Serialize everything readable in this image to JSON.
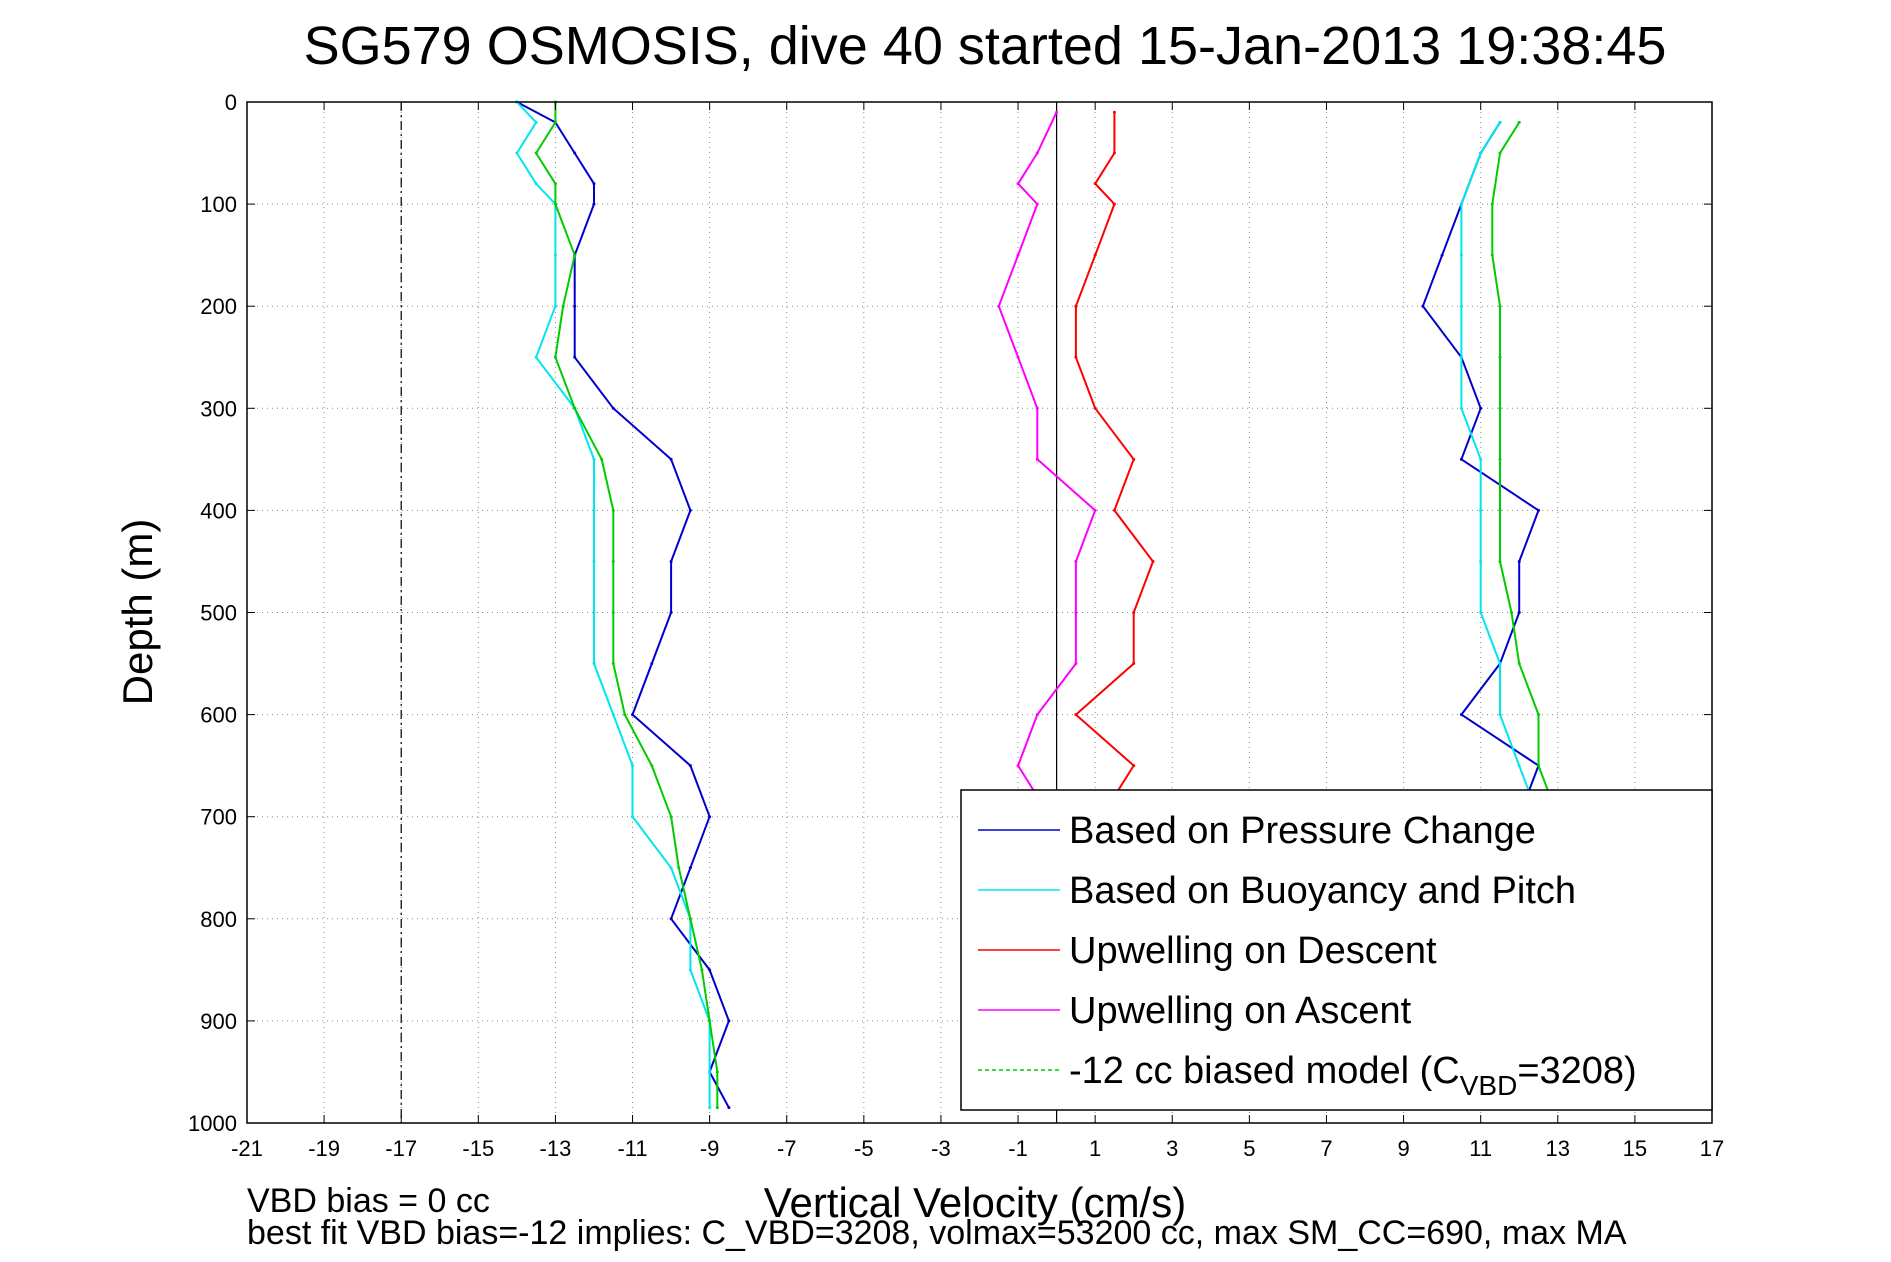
{
  "chart_data": {
    "type": "line",
    "title": "SG579 OSMOSIS, dive 40 started 15-Jan-2013 19:38:45",
    "xlabel": "Vertical Velocity (cm/s)",
    "ylabel": "Depth (m)",
    "xlim": [
      -21,
      17
    ],
    "ylim": [
      1000,
      0
    ],
    "y_reversed": true,
    "grid": true,
    "x_ticks": [
      "-21",
      "-19",
      "-17",
      "-15",
      "-13",
      "-11",
      "-9",
      "-7",
      "-5",
      "-3",
      "-1",
      "1",
      "3",
      "5",
      "7",
      "9",
      "11",
      "13",
      "15",
      "17"
    ],
    "y_ticks": [
      "0",
      "100",
      "200",
      "300",
      "400",
      "500",
      "600",
      "700",
      "800",
      "900",
      "1000"
    ],
    "reference_lines": [
      {
        "x": -17,
        "style": "dash-dot",
        "color": "#000000"
      },
      {
        "x": 0,
        "style": "solid",
        "color": "#000000"
      }
    ],
    "legend_position": "bottom-right",
    "legend": [
      {
        "label": "Based on Pressure Change",
        "color": "#0000cc"
      },
      {
        "label": "Based on Buoyancy and Pitch",
        "color": "#00e5ee"
      },
      {
        "label": "Upwelling on Descent",
        "color": "#ff0000"
      },
      {
        "label": "Upwelling on Ascent",
        "color": "#ff00ff"
      },
      {
        "label_main": "-12 cc biased model (C",
        "label_sub": "VBD",
        "label_end": "=3208)",
        "color": "#00cc00",
        "dashed": true
      }
    ],
    "series": [
      {
        "key": "pressure_descent",
        "color": "#0000cc",
        "depth": [
          0,
          20,
          50,
          80,
          100,
          150,
          200,
          250,
          300,
          350,
          400,
          450,
          500,
          550,
          600,
          650,
          700,
          750,
          800,
          850,
          900,
          950,
          985
        ],
        "velocity": [
          -14,
          -13,
          -12.5,
          -12,
          -12,
          -12.5,
          -12.5,
          -12.5,
          -11.5,
          -10,
          -9.5,
          -10,
          -10,
          -10.5,
          -11,
          -9.5,
          -9,
          -9.5,
          -10,
          -9,
          -8.5,
          -9,
          -8.5
        ]
      },
      {
        "key": "buoyancy_descent",
        "color": "#00e5ee",
        "depth": [
          0,
          20,
          50,
          80,
          100,
          150,
          200,
          250,
          300,
          350,
          400,
          450,
          500,
          550,
          600,
          650,
          700,
          750,
          800,
          850,
          900,
          950,
          985
        ],
        "velocity": [
          -14,
          -13.5,
          -14,
          -13.5,
          -13,
          -13,
          -13,
          -13.5,
          -12.5,
          -12,
          -12,
          -12,
          -12,
          -12,
          -11.5,
          -11,
          -11,
          -10,
          -9.5,
          -9.5,
          -9,
          -9,
          -9
        ]
      },
      {
        "key": "model_descent",
        "color": "#00cc00",
        "depth": [
          0,
          20,
          50,
          80,
          100,
          150,
          200,
          250,
          300,
          350,
          400,
          450,
          500,
          550,
          600,
          650,
          700,
          750,
          800,
          850,
          900,
          950,
          985
        ],
        "velocity": [
          -13,
          -13,
          -13.5,
          -13,
          -13,
          -12.5,
          -12.8,
          -13,
          -12.5,
          -11.8,
          -11.5,
          -11.5,
          -11.5,
          -11.5,
          -11.2,
          -10.5,
          -10,
          -9.8,
          -9.5,
          -9.2,
          -9,
          -8.8,
          -8.8
        ]
      },
      {
        "key": "pressure_ascent",
        "color": "#0000cc",
        "depth": [
          985,
          950,
          900,
          850,
          800,
          750,
          700,
          650,
          600,
          550,
          500,
          450,
          400,
          350,
          300,
          250,
          200,
          150,
          100,
          50,
          20
        ],
        "velocity": [
          13,
          12.5,
          12.5,
          12,
          12.5,
          12,
          12,
          12.5,
          10.5,
          11.5,
          12,
          12,
          12.5,
          10.5,
          11,
          10.5,
          9.5,
          10,
          10.5,
          11,
          11.5
        ]
      },
      {
        "key": "buoyancy_ascent",
        "color": "#00e5ee",
        "depth": [
          985,
          950,
          900,
          850,
          800,
          750,
          700,
          650,
          600,
          550,
          500,
          450,
          400,
          350,
          300,
          250,
          200,
          150,
          100,
          50,
          20
        ],
        "velocity": [
          13,
          12.5,
          12.5,
          12.5,
          12.5,
          12.5,
          12.5,
          12,
          11.5,
          11.5,
          11,
          11,
          11,
          11,
          10.5,
          10.5,
          10.5,
          10.5,
          10.5,
          11,
          11.5
        ]
      },
      {
        "key": "model_ascent",
        "color": "#00cc00",
        "depth": [
          985,
          950,
          900,
          850,
          800,
          750,
          700,
          650,
          600,
          550,
          500,
          450,
          400,
          350,
          300,
          250,
          200,
          150,
          100,
          50,
          20
        ],
        "velocity": [
          13.5,
          13,
          13,
          13,
          13,
          13,
          13,
          12.5,
          12.5,
          12,
          11.8,
          11.5,
          11.5,
          11.5,
          11.5,
          11.5,
          11.5,
          11.3,
          11.3,
          11.5,
          12
        ]
      },
      {
        "key": "upwelling_descent",
        "color": "#ff0000",
        "depth": [
          10,
          50,
          80,
          100,
          150,
          200,
          250,
          300,
          350,
          400,
          450,
          500,
          550,
          600,
          650,
          680
        ],
        "velocity": [
          1.5,
          1.5,
          1,
          1.5,
          1,
          0.5,
          0.5,
          1,
          2,
          1.5,
          2.5,
          2,
          2,
          0.5,
          2,
          1.5
        ]
      },
      {
        "key": "upwelling_ascent",
        "color": "#ff00ff",
        "depth": [
          10,
          50,
          80,
          100,
          150,
          200,
          250,
          300,
          350,
          400,
          450,
          500,
          550,
          600,
          650,
          680
        ],
        "velocity": [
          0,
          -0.5,
          -1,
          -0.5,
          -1,
          -1.5,
          -1,
          -0.5,
          -0.5,
          1,
          0.5,
          0.5,
          0.5,
          -0.5,
          -1,
          -0.5
        ]
      }
    ]
  },
  "notes": {
    "line1": "VBD bias = 0 cc",
    "line2": "best fit VBD bias=-12 implies: C_VBD=3208, volmax=53200 cc, max SM_CC=690, max MA"
  }
}
